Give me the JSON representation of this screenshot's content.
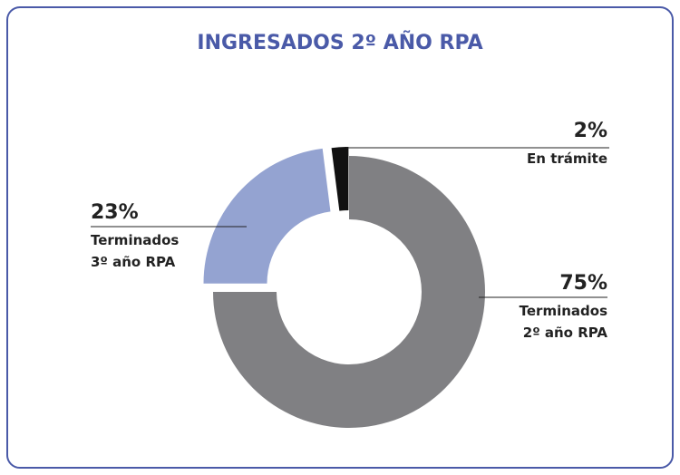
{
  "chart_data": {
    "type": "donut",
    "title": "INGRESADOS 2º AÑO RPA",
    "categories": [
      "Terminados 2º año RPA",
      "Terminados 3º año RPA",
      "En trámite"
    ],
    "values": [
      75,
      23,
      2
    ],
    "value_labels": [
      "75%",
      "23%",
      "2%"
    ],
    "colors": [
      "#808083",
      "#94a3d1",
      "#111111"
    ]
  }
}
